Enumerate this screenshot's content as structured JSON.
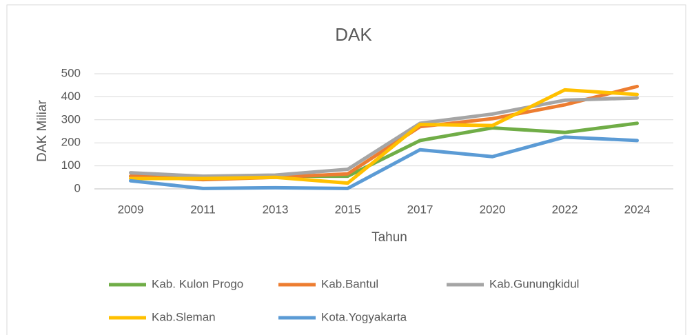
{
  "chart_data": {
    "type": "line",
    "title": "DAK",
    "x_label": "Tahun",
    "y_label": "DAK Miliar",
    "categories": [
      "2009",
      "2011",
      "2013",
      "2015",
      "2017",
      "2020",
      "2022",
      "2024"
    ],
    "series": [
      {
        "name": "Kab. Kulon Progo",
        "color": "#70ad47",
        "values": [
          55,
          50,
          55,
          55,
          210,
          265,
          245,
          285
        ]
      },
      {
        "name": "Kab.Bantul",
        "color": "#ed7d31",
        "values": [
          55,
          40,
          50,
          65,
          270,
          305,
          365,
          445
        ]
      },
      {
        "name": "Kab.Gunungkidul",
        "color": "#a5a5a5",
        "values": [
          70,
          55,
          60,
          85,
          285,
          325,
          385,
          395
        ]
      },
      {
        "name": "Kab.Sleman",
        "color": "#ffc000",
        "values": [
          45,
          45,
          50,
          25,
          280,
          275,
          430,
          410
        ]
      },
      {
        "name": "Kota.Yogyakarta",
        "color": "#5b9bd5",
        "values": [
          35,
          2,
          5,
          2,
          170,
          140,
          225,
          210
        ]
      }
    ],
    "ylim": [
      0,
      500
    ],
    "yticks": [
      0,
      100,
      200,
      300,
      400,
      500
    ],
    "grid": true,
    "legend": "bottom"
  }
}
